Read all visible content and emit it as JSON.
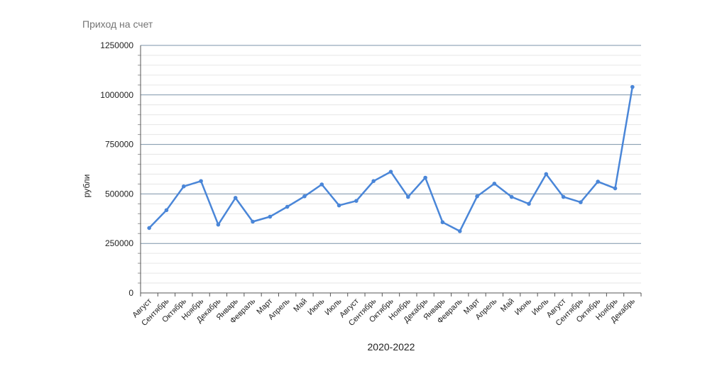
{
  "chart_data": {
    "type": "line",
    "title": "Приход на счет",
    "xlabel": "2020-2022",
    "ylabel": "рубли",
    "ylim": [
      0,
      1250000
    ],
    "yticks": [
      0,
      250000,
      500000,
      750000,
      1000000,
      1250000
    ],
    "grid": true,
    "legend": "none",
    "colors": {
      "line": "#4a86d8",
      "major_grid": "#7b93a8",
      "minor_grid": "#e6e6e6",
      "axis": "#555555"
    },
    "categories": [
      "Август",
      "Сентябрь",
      "Октябрь",
      "Ноябрь",
      "Декабрь",
      "Январь",
      "Февраль",
      "Март",
      "Апрель",
      "Май",
      "Июнь",
      "Июль",
      "Август",
      "Сентябрь",
      "Октябрь",
      "Ноябрь",
      "Декабрь",
      "Январь",
      "Февраль",
      "Март",
      "Апрель",
      "Май",
      "Июнь",
      "Июль",
      "Август",
      "Сентябрь",
      "Октябрь",
      "Ноябрь",
      "Декабрь"
    ],
    "series": [
      {
        "values": [
          328000,
          418000,
          538000,
          565000,
          345000,
          480000,
          360000,
          385000,
          435000,
          488000,
          548000,
          442000,
          465000,
          565000,
          612000,
          485000,
          582000,
          357000,
          312000,
          488000,
          552000,
          485000,
          450000,
          600000,
          485000,
          458000,
          562000,
          528000,
          1040000
        ]
      }
    ]
  }
}
